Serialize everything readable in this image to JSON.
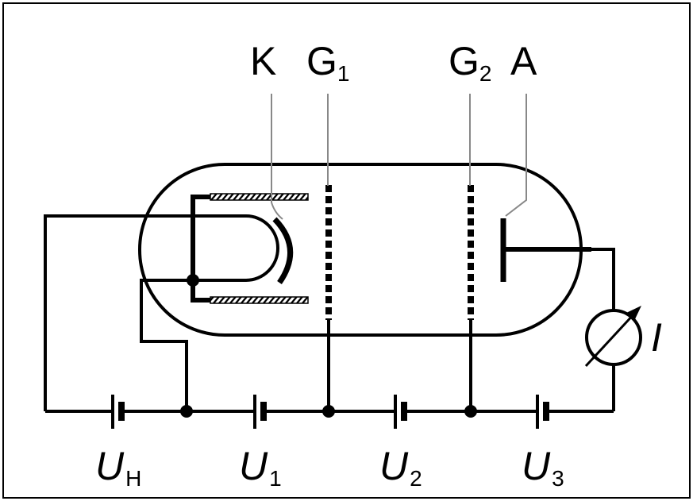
{
  "electrodes": {
    "cathode": "K",
    "grid1": {
      "letter": "G",
      "index": "1"
    },
    "grid2": {
      "letter": "G",
      "index": "2"
    },
    "anode": "A"
  },
  "meter": {
    "label": "I"
  },
  "voltages": [
    {
      "letter": "U",
      "index": "H"
    },
    {
      "letter": "U",
      "index": "1"
    },
    {
      "letter": "U",
      "index": "2"
    },
    {
      "letter": "U",
      "index": "3"
    }
  ],
  "colors": {
    "ink": "#000000",
    "leader": "#888888",
    "frame": "#000000"
  }
}
